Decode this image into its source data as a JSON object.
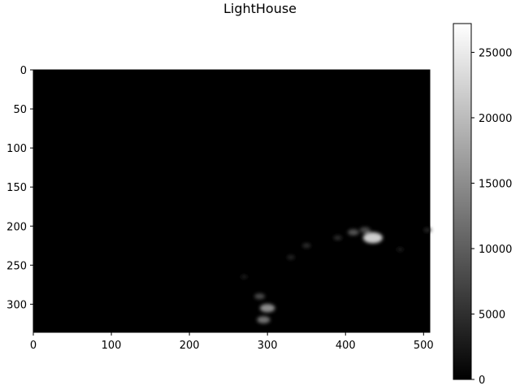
{
  "chart_data": {
    "type": "heatmap",
    "title": "LightHouse",
    "colormap": "gray",
    "image_extent": {
      "x": [
        0,
        508
      ],
      "y": [
        0,
        336
      ]
    },
    "x_ticks": [
      {
        "value": 0,
        "label": "0"
      },
      {
        "value": 100,
        "label": "100"
      },
      {
        "value": 200,
        "label": "200"
      },
      {
        "value": 300,
        "label": "300"
      },
      {
        "value": 400,
        "label": "400"
      },
      {
        "value": 500,
        "label": "500"
      }
    ],
    "y_ticks": [
      {
        "value": 0,
        "label": "0"
      },
      {
        "value": 50,
        "label": "50"
      },
      {
        "value": 100,
        "label": "100"
      },
      {
        "value": 150,
        "label": "150"
      },
      {
        "value": 200,
        "label": "200"
      },
      {
        "value": 250,
        "label": "250"
      },
      {
        "value": 300,
        "label": "300"
      }
    ],
    "colorbar": {
      "range": [
        0,
        27200
      ],
      "ticks": [
        {
          "value": 0,
          "label": "0"
        },
        {
          "value": 5000,
          "label": "5000"
        },
        {
          "value": 10000,
          "label": "10000"
        },
        {
          "value": 15000,
          "label": "15000"
        },
        {
          "value": 20000,
          "label": "20000"
        },
        {
          "value": 25000,
          "label": "25000"
        }
      ]
    },
    "bright_features": [
      {
        "x": 300,
        "y": 305,
        "value": 15000
      },
      {
        "x": 295,
        "y": 320,
        "value": 12000
      },
      {
        "x": 290,
        "y": 290,
        "value": 8000
      },
      {
        "x": 435,
        "y": 215,
        "value": 22000
      },
      {
        "x": 410,
        "y": 208,
        "value": 9000
      },
      {
        "x": 425,
        "y": 205,
        "value": 8000
      },
      {
        "x": 390,
        "y": 215,
        "value": 5000
      },
      {
        "x": 350,
        "y": 225,
        "value": 5000
      },
      {
        "x": 330,
        "y": 240,
        "value": 4000
      },
      {
        "x": 505,
        "y": 205,
        "value": 4000
      },
      {
        "x": 270,
        "y": 265,
        "value": 3000
      },
      {
        "x": 470,
        "y": 230,
        "value": 3000
      }
    ]
  }
}
